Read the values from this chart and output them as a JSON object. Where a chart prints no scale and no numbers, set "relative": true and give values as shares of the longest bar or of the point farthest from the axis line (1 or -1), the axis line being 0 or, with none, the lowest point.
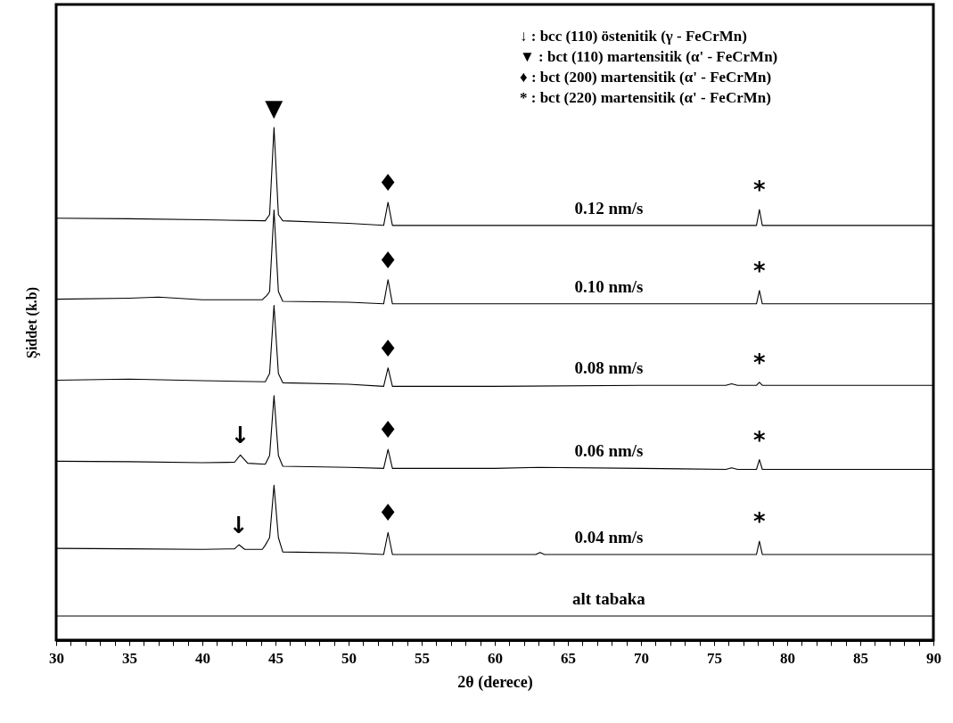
{
  "chart_data": {
    "type": "line",
    "relative": true,
    "xlabel": "2θ (derece)",
    "ylabel": "Şiddet (k.b)",
    "xlim": [
      30,
      90
    ],
    "xticks": [
      30,
      {
        "value": 31,
        "label": null
      },
      {
        "value": 32,
        "label": null
      },
      {
        "value": 33,
        "label": null
      },
      {
        "value": 34,
        "label": null
      },
      35,
      {
        "value": 36,
        "label": null
      },
      {
        "value": 37,
        "label": null
      },
      {
        "value": 38,
        "label": null
      },
      {
        "value": 39,
        "label": null
      },
      40,
      {
        "value": 41,
        "label": null
      },
      {
        "value": 42,
        "label": null
      },
      {
        "value": 43,
        "label": null
      },
      {
        "value": 44,
        "label": null
      },
      45,
      {
        "value": 46,
        "label": null
      },
      {
        "value": 47,
        "label": null
      },
      {
        "value": 48,
        "label": null
      },
      {
        "value": 49,
        "label": null
      },
      50,
      {
        "value": 51,
        "label": null
      },
      {
        "value": 52,
        "label": null
      },
      {
        "value": 53,
        "label": null
      },
      {
        "value": 54,
        "label": null
      },
      55,
      {
        "value": 56,
        "label": null
      },
      {
        "value": 57,
        "label": null
      },
      {
        "value": 58,
        "label": null
      },
      {
        "value": 59,
        "label": null
      },
      60,
      {
        "value": 61,
        "label": null
      },
      {
        "value": 62,
        "label": null
      },
      {
        "value": 63,
        "label": null
      },
      {
        "value": 64,
        "label": null
      },
      65,
      {
        "value": 66,
        "label": null
      },
      {
        "value": 67,
        "label": null
      },
      {
        "value": 68,
        "label": null
      },
      {
        "value": 69,
        "label": null
      },
      70,
      {
        "value": 71,
        "label": null
      },
      {
        "value": 72,
        "label": null
      },
      {
        "value": 73,
        "label": null
      },
      {
        "value": 74,
        "label": null
      },
      75,
      {
        "value": 76,
        "label": null
      },
      {
        "value": 77,
        "label": null
      },
      {
        "value": 78,
        "label": null
      },
      {
        "value": 79,
        "label": null
      },
      80,
      {
        "value": 81,
        "label": null
      },
      {
        "value": 82,
        "label": null
      },
      {
        "value": 83,
        "label": null
      },
      {
        "value": 84,
        "label": null
      },
      85,
      {
        "value": 86,
        "label": null
      },
      {
        "value": 87,
        "label": null
      },
      {
        "value": 88,
        "label": null
      },
      {
        "value": 89,
        "label": null
      },
      90
    ],
    "grid": false,
    "marker": "none",
    "line_style": "solid",
    "series": [
      {
        "name": "0.12 nm/s",
        "color": "#000000",
        "x": [
          30,
          35,
          40,
          44.3,
          44.6,
          44.9,
          45.2,
          45.5,
          50,
          52.4,
          52.7,
          53.0,
          60,
          70,
          77.9,
          78.1,
          78.3,
          85,
          90
        ],
        "values": [
          0.823,
          0.822,
          0.82,
          0.818,
          0.83,
          1.0,
          0.83,
          0.818,
          0.813,
          0.809,
          0.854,
          0.809,
          0.809,
          0.809,
          0.809,
          0.84,
          0.809,
          0.809,
          0.809
        ]
      },
      {
        "name": "0.10 nm/s",
        "color": "#000000",
        "x": [
          30,
          35,
          37,
          40,
          44.1,
          44.4,
          44.6,
          44.9,
          45.2,
          45.5,
          50,
          52.4,
          52.7,
          53.0,
          60,
          70,
          77.9,
          78.1,
          78.3,
          85,
          90
        ],
        "values": [
          0.665,
          0.667,
          0.669,
          0.664,
          0.664,
          0.672,
          0.68,
          0.839,
          0.68,
          0.661,
          0.659,
          0.656,
          0.703,
          0.656,
          0.656,
          0.656,
          0.656,
          0.682,
          0.656,
          0.656,
          0.656
        ]
      },
      {
        "name": "0.08 nm/s",
        "color": "#000000",
        "x": [
          30,
          35,
          40,
          44.3,
          44.6,
          44.9,
          45.2,
          45.5,
          50,
          52.4,
          52.7,
          53.0,
          60,
          70,
          75.8,
          76.2,
          76.6,
          77.9,
          78.1,
          78.3,
          85,
          90
        ],
        "values": [
          0.507,
          0.509,
          0.506,
          0.504,
          0.52,
          0.653,
          0.52,
          0.502,
          0.499,
          0.495,
          0.531,
          0.495,
          0.495,
          0.497,
          0.497,
          0.5,
          0.497,
          0.497,
          0.503,
          0.497,
          0.497,
          0.497
        ]
      },
      {
        "name": "0.06 nm/s",
        "color": "#000000",
        "x": [
          30,
          35,
          40,
          42.2,
          42.6,
          43.1,
          44.3,
          44.6,
          44.9,
          45.2,
          45.5,
          50,
          52.4,
          52.7,
          53.0,
          60,
          63,
          70,
          75.8,
          76.2,
          76.6,
          77.9,
          78.1,
          78.3,
          85,
          90
        ],
        "values": [
          0.349,
          0.348,
          0.346,
          0.347,
          0.361,
          0.345,
          0.343,
          0.36,
          0.477,
          0.36,
          0.339,
          0.337,
          0.335,
          0.372,
          0.335,
          0.335,
          0.337,
          0.335,
          0.333,
          0.336,
          0.333,
          0.333,
          0.352,
          0.333,
          0.333,
          0.333
        ]
      },
      {
        "name": "0.04 nm/s",
        "color": "#000000",
        "x": [
          30,
          35,
          40,
          42.2,
          42.5,
          42.9,
          44.1,
          44.3,
          44.6,
          44.9,
          45.2,
          45.5,
          50,
          52.4,
          52.7,
          53.0,
          60,
          62.8,
          63.1,
          63.4,
          70,
          77.9,
          78.1,
          78.3,
          85,
          90
        ],
        "values": [
          0.179,
          0.178,
          0.177,
          0.178,
          0.186,
          0.177,
          0.177,
          0.185,
          0.2,
          0.302,
          0.2,
          0.172,
          0.17,
          0.167,
          0.21,
          0.167,
          0.167,
          0.167,
          0.171,
          0.167,
          0.167,
          0.167,
          0.193,
          0.167,
          0.167,
          0.167
        ]
      },
      {
        "name": "alt tabaka",
        "color": "#000000",
        "x": [
          30,
          90
        ],
        "values": [
          0.047,
          0.047
        ]
      }
    ],
    "annotations": [
      "↓ : bcc (110) östenitik  (γ - FeCrMn)",
      "▼ : bct (110) martensitik (α' - FeCrMn)",
      "♦ : bct (200) martensitik (α' - FeCrMn)",
      "* : bct (220) martensitik (α' - FeCrMn)",
      {
        "text": "▼",
        "x": 44.9,
        "y": 1.0
      },
      {
        "text": "♦",
        "x": 52.7,
        "y": 0.854
      },
      {
        "text": "♦",
        "x": 52.7,
        "y": 0.703
      },
      {
        "text": "♦",
        "x": 52.7,
        "y": 0.531
      },
      {
        "text": "♦",
        "x": 52.7,
        "y": 0.372
      },
      {
        "text": "♦",
        "x": 52.7,
        "y": 0.21
      },
      {
        "text": "*",
        "x": 78.1,
        "y": 0.84
      },
      {
        "text": "*",
        "x": 78.1,
        "y": 0.682
      },
      {
        "text": "*",
        "x": 78.1,
        "y": 0.503
      },
      {
        "text": "*",
        "x": 78.1,
        "y": 0.352
      },
      {
        "text": "*",
        "x": 78.1,
        "y": 0.193
      },
      {
        "text": "↓",
        "x": 42.6,
        "y": 0.361
      },
      {
        "text": "↓",
        "x": 42.5,
        "y": 0.186
      }
    ]
  }
}
